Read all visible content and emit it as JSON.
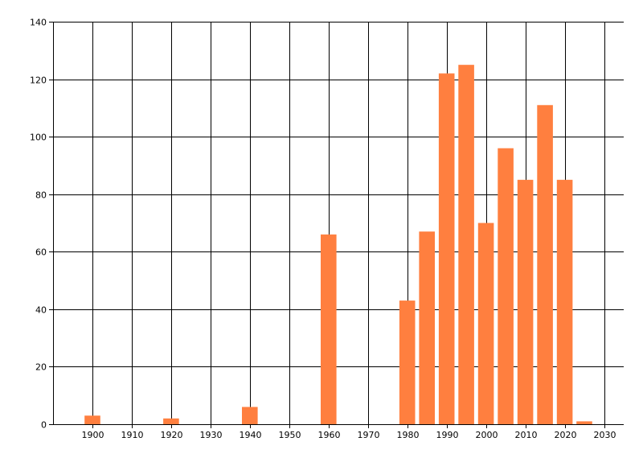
{
  "chart_data": {
    "type": "bar",
    "title": "",
    "xlabel": "",
    "ylabel": "",
    "x": [
      1900,
      1920,
      1940,
      1960,
      1980,
      1985,
      1990,
      1995,
      2000,
      2005,
      2010,
      2015,
      2020,
      2025
    ],
    "series": [
      {
        "values": [
          3,
          2,
          6,
          66,
          43,
          67,
          122,
          125,
          70,
          96,
          85,
          111,
          85,
          1
        ]
      }
    ],
    "xlim": [
      1890,
      2035
    ],
    "ylim": [
      0,
      140
    ],
    "xticks": [
      1900,
      1910,
      1920,
      1930,
      1940,
      1950,
      1960,
      1970,
      1980,
      1990,
      2000,
      2010,
      2020,
      2030
    ],
    "yticks": [
      0,
      20,
      40,
      60,
      80,
      100,
      120,
      140
    ],
    "grid": true,
    "legend": "none",
    "bar_width_years": 4,
    "colors": {
      "bar": "#ff7f3f",
      "grid": "#000000",
      "axis": "#000000",
      "text": "#000000"
    }
  }
}
